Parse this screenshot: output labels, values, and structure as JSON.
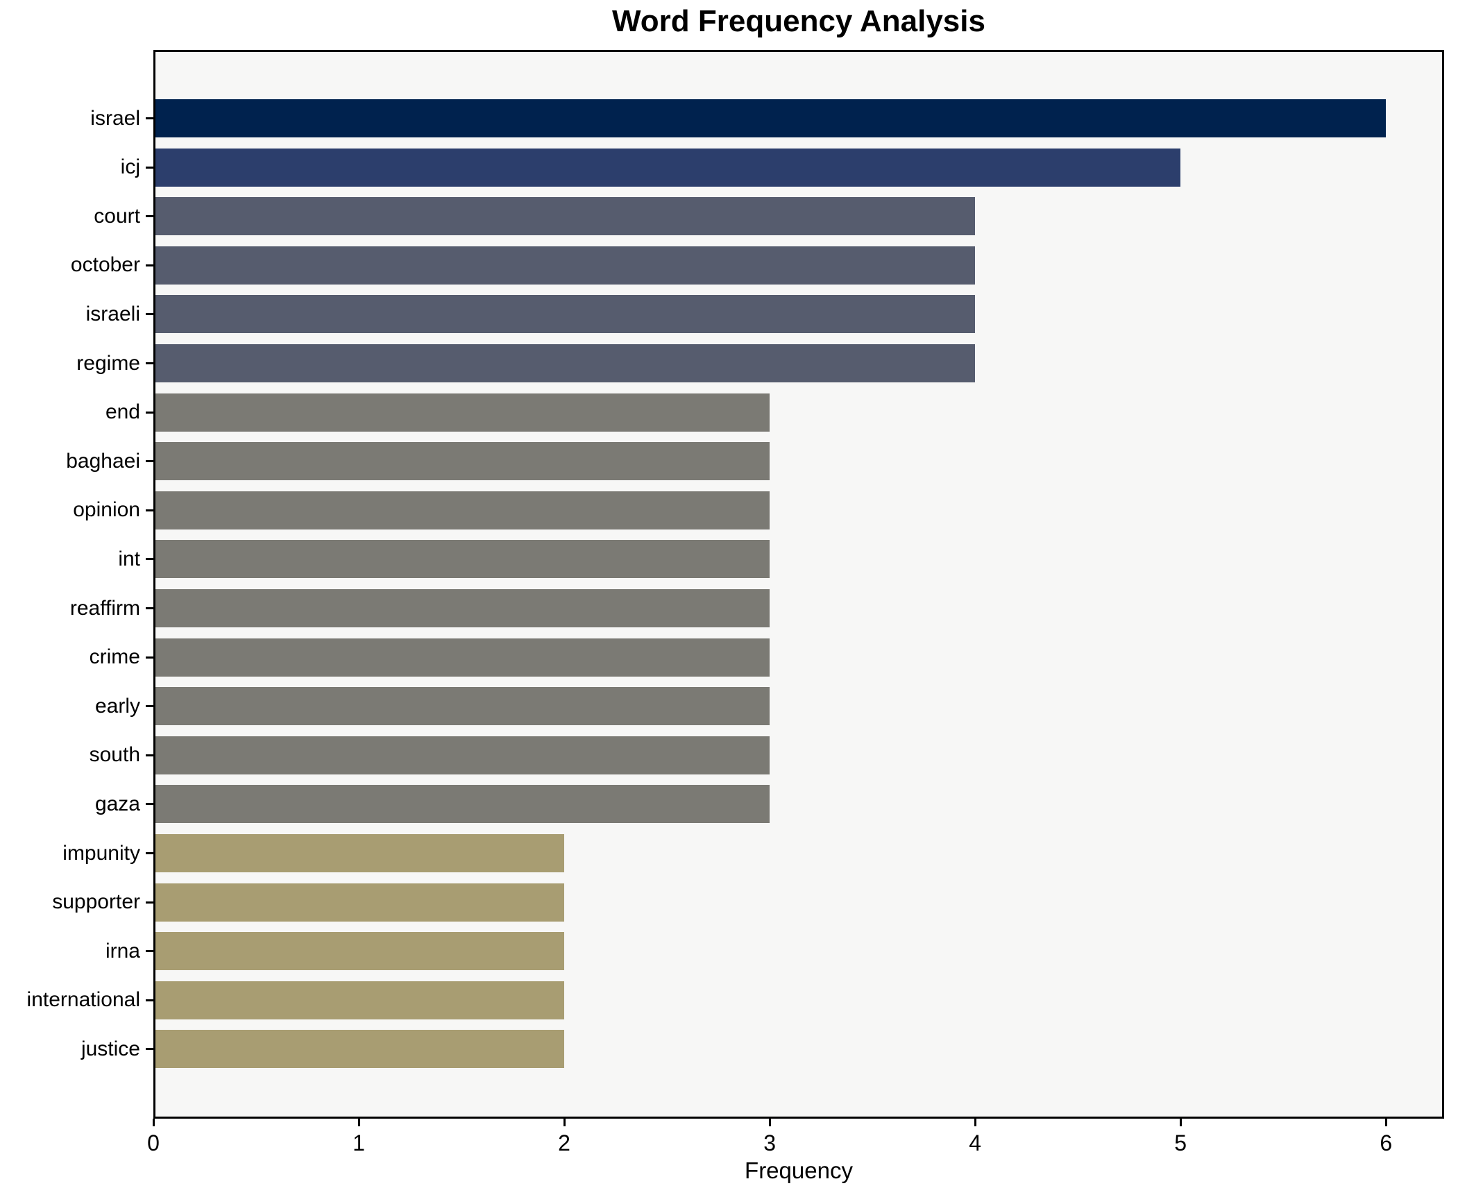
{
  "chart_data": {
    "type": "bar",
    "orientation": "horizontal",
    "title": "Word Frequency Analysis",
    "xlabel": "Frequency",
    "ylabel": "",
    "categories": [
      "israel",
      "icj",
      "court",
      "october",
      "israeli",
      "regime",
      "end",
      "baghaei",
      "opinion",
      "int",
      "reaffirm",
      "crime",
      "early",
      "south",
      "gaza",
      "impunity",
      "supporter",
      "irna",
      "international",
      "justice"
    ],
    "values": [
      6,
      5,
      4,
      4,
      4,
      4,
      3,
      3,
      3,
      3,
      3,
      3,
      3,
      3,
      3,
      2,
      2,
      2,
      2,
      2
    ],
    "bar_colors": [
      "#00224e",
      "#2c3e6c",
      "#565c6e",
      "#565c6e",
      "#565c6e",
      "#565c6e",
      "#7b7a74",
      "#7b7a74",
      "#7b7a74",
      "#7b7a74",
      "#7b7a74",
      "#7b7a74",
      "#7b7a74",
      "#7b7a74",
      "#7b7a74",
      "#a89d72",
      "#a89d72",
      "#a89d72",
      "#a89d72",
      "#a89d72"
    ],
    "value_color_map": {
      "6": "#00224e",
      "5": "#2c3e6c",
      "4": "#565c6e",
      "3": "#7b7a74",
      "2": "#a89d72"
    },
    "x_ticks": [
      "0",
      "1",
      "2",
      "3",
      "4",
      "5",
      "6"
    ],
    "xlim": [
      0,
      6.283
    ],
    "grid": false,
    "legend": false,
    "plot_background": "#f7f7f6",
    "figure_background": "#ffffff",
    "axis_color": "#000000",
    "text_color": "#000000"
  }
}
